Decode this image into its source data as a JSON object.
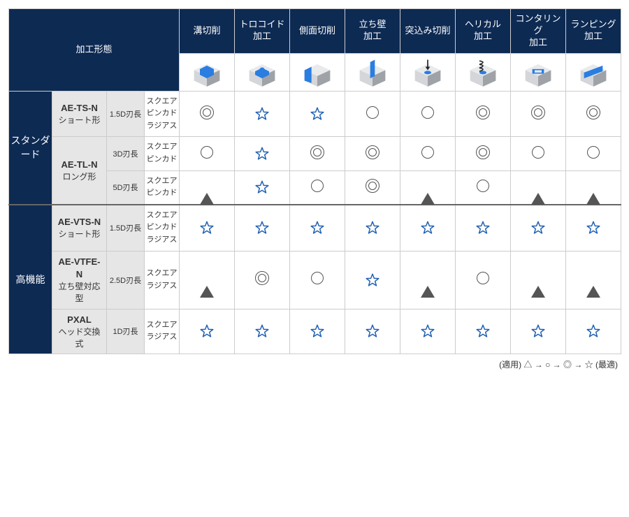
{
  "colors": {
    "header_bg": "#0d2a53",
    "header_text": "#ffffff",
    "gray_bg": "#e6e6e6",
    "border": "#cccccc",
    "thick_border": "#666666",
    "symbol_blue": "#1e5fb4",
    "symbol_gray": "#555555",
    "text": "#333333",
    "icon_block_light": "#d4d6d9",
    "icon_block_dark": "#9fa3a8",
    "icon_block_top": "#e8eaec",
    "icon_accent": "#2a7de1"
  },
  "fonts": {
    "header_size": 13,
    "body_size": 12,
    "small_size": 11
  },
  "header": {
    "row_label": "加工形態",
    "operations": [
      {
        "label": "溝切削",
        "icon": "slot"
      },
      {
        "label": "トロコイド\n加工",
        "icon": "trochoid"
      },
      {
        "label": "側面切削",
        "icon": "side"
      },
      {
        "label": "立ち壁\n加工",
        "icon": "wall"
      },
      {
        "label": "突込み切削",
        "icon": "plunge"
      },
      {
        "label": "ヘリカル\n加工",
        "icon": "helical"
      },
      {
        "label": "コンタリング\n加工",
        "icon": "contour"
      },
      {
        "label": "ランピング\n加工",
        "icon": "ramp"
      }
    ]
  },
  "categories": [
    {
      "name": "スタンダード",
      "products": [
        {
          "name": "AE-TS-N",
          "subtitle": "ショート形",
          "variants": [
            {
              "len": "1.5D刃長",
              "shapes": [
                "スクエア",
                "ピンカド",
                "ラジアス"
              ],
              "ratings": [
                "dbl",
                "star",
                "star",
                "circ",
                "circ",
                "dbl",
                "dbl",
                "dbl"
              ]
            }
          ]
        },
        {
          "name": "AE-TL-N",
          "subtitle": "ロング形",
          "variants": [
            {
              "len": "3D刃長",
              "shapes": [
                "スクエア",
                "ピンカド"
              ],
              "ratings": [
                "circ",
                "star",
                "dbl",
                "dbl",
                "circ",
                "dbl",
                "circ",
                "circ"
              ]
            },
            {
              "len": "5D刃長",
              "shapes": [
                "スクエア",
                "ピンカド"
              ],
              "ratings": [
                "tri",
                "star",
                "circ",
                "dbl",
                "tri",
                "circ",
                "tri",
                "tri"
              ]
            }
          ]
        }
      ]
    },
    {
      "name": "高機能",
      "products": [
        {
          "name": "AE-VTS-N",
          "subtitle": "ショート形",
          "variants": [
            {
              "len": "1.5D刃長",
              "shapes": [
                "スクエア",
                "ピンカド",
                "ラジアス"
              ],
              "ratings": [
                "star",
                "star",
                "star",
                "star",
                "star",
                "star",
                "star",
                "star"
              ]
            }
          ]
        },
        {
          "name": "AE-VTFE-N",
          "subtitle": "立ち壁対応型",
          "variants": [
            {
              "len": "2.5D刃長",
              "shapes": [
                "スクエア",
                "ラジアス"
              ],
              "ratings": [
                "tri",
                "dbl",
                "circ",
                "star",
                "tri",
                "circ",
                "tri",
                "tri"
              ]
            }
          ]
        },
        {
          "name": "PXAL",
          "subtitle": "ヘッド交換式",
          "variants": [
            {
              "len": "1D刃長",
              "shapes": [
                "スクエア",
                "ラジアス"
              ],
              "ratings": [
                "star",
                "star",
                "star",
                "star",
                "star",
                "star",
                "star",
                "star"
              ]
            }
          ]
        }
      ]
    }
  ],
  "legend": "(適用) △ → ○ → ◎ → ☆ (最適)"
}
